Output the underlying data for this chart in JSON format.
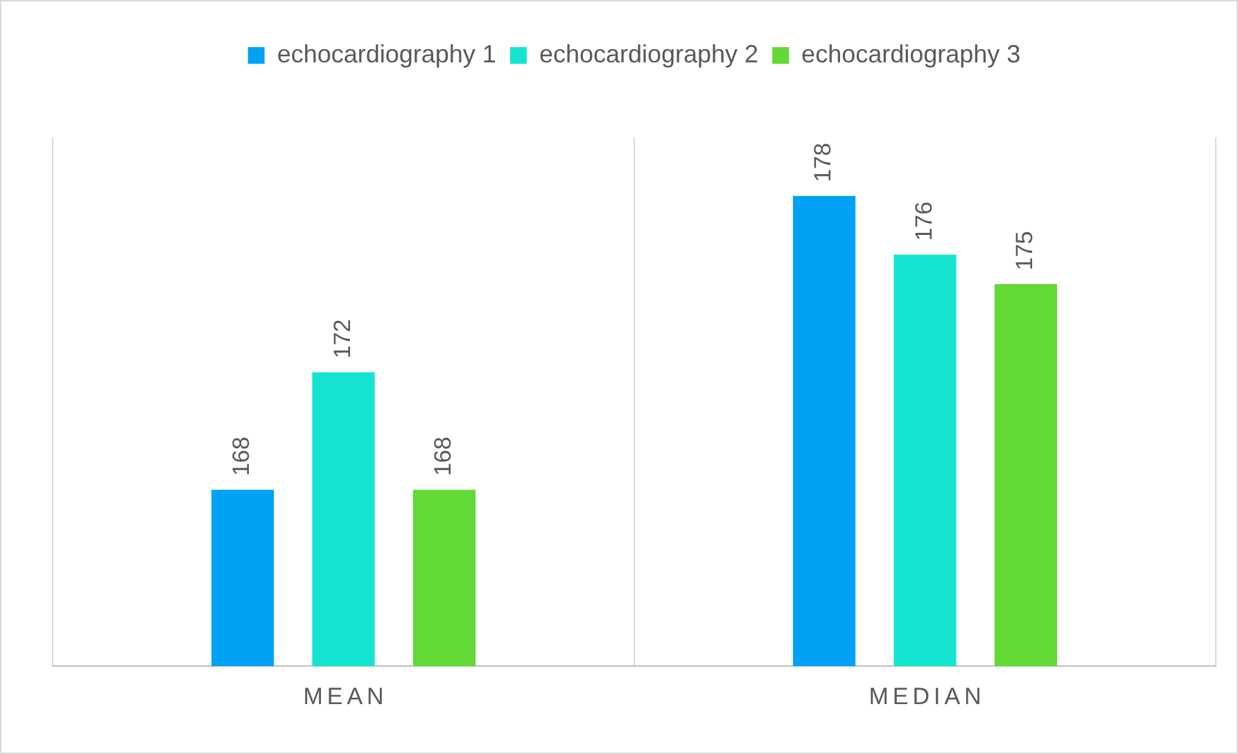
{
  "chart_data": {
    "type": "bar",
    "categories": [
      "MEAN",
      "MEDIAN"
    ],
    "series": [
      {
        "name": "echocardiography 1",
        "color": "#00a2f5",
        "values": [
          168,
          178
        ]
      },
      {
        "name": "echocardiography 2",
        "color": "#15e5d0",
        "values": [
          172,
          176
        ]
      },
      {
        "name": "echocardiography 3",
        "color": "#62d935",
        "values": [
          168,
          175
        ]
      }
    ],
    "ylim": [
      162,
      180
    ],
    "tick_labels": "x",
    "data_labels": true,
    "grid": "x",
    "legend": "top"
  }
}
